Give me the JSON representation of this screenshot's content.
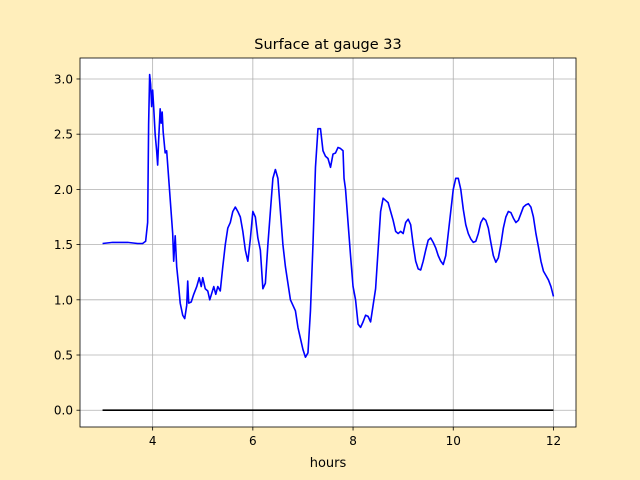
{
  "figure": {
    "background": "#ffeebb"
  },
  "chart_data": {
    "type": "line",
    "title": "Surface at gauge 33",
    "xlabel": "hours",
    "ylabel": "",
    "xlim": [
      2.55,
      12.45
    ],
    "ylim": [
      -0.152,
      3.19
    ],
    "grid": true,
    "xticks": [
      4,
      6,
      8,
      10,
      12
    ],
    "xtick_labels": [
      "4",
      "6",
      "8",
      "10",
      "12"
    ],
    "yticks": [
      0.0,
      0.5,
      1.0,
      1.5,
      2.0,
      2.5,
      3.0
    ],
    "ytick_labels": [
      "0.0",
      "0.5",
      "1.0",
      "1.5",
      "2.0",
      "2.5",
      "3.0"
    ],
    "series": [
      {
        "color": "#0000ff",
        "points": [
          [
            3.0,
            1.51
          ],
          [
            3.2,
            1.52
          ],
          [
            3.5,
            1.52
          ],
          [
            3.7,
            1.51
          ],
          [
            3.8,
            1.51
          ],
          [
            3.86,
            1.53
          ],
          [
            3.9,
            1.7
          ],
          [
            3.92,
            2.6
          ],
          [
            3.94,
            3.04
          ],
          [
            3.96,
            2.95
          ],
          [
            3.98,
            2.75
          ],
          [
            4.0,
            2.9
          ],
          [
            4.02,
            2.75
          ],
          [
            4.05,
            2.5
          ],
          [
            4.08,
            2.35
          ],
          [
            4.1,
            2.22
          ],
          [
            4.12,
            2.45
          ],
          [
            4.15,
            2.73
          ],
          [
            4.17,
            2.6
          ],
          [
            4.19,
            2.7
          ],
          [
            4.21,
            2.52
          ],
          [
            4.25,
            2.33
          ],
          [
            4.28,
            2.35
          ],
          [
            4.32,
            2.1
          ],
          [
            4.36,
            1.85
          ],
          [
            4.4,
            1.6
          ],
          [
            4.42,
            1.35
          ],
          [
            4.45,
            1.58
          ],
          [
            4.48,
            1.3
          ],
          [
            4.52,
            1.12
          ],
          [
            4.55,
            0.97
          ],
          [
            4.6,
            0.86
          ],
          [
            4.64,
            0.83
          ],
          [
            4.68,
            0.95
          ],
          [
            4.7,
            1.17
          ],
          [
            4.72,
            0.97
          ],
          [
            4.77,
            0.98
          ],
          [
            4.82,
            1.05
          ],
          [
            4.88,
            1.12
          ],
          [
            4.93,
            1.2
          ],
          [
            4.97,
            1.12
          ],
          [
            5.0,
            1.2
          ],
          [
            5.05,
            1.1
          ],
          [
            5.1,
            1.08
          ],
          [
            5.14,
            1.0
          ],
          [
            5.18,
            1.06
          ],
          [
            5.22,
            1.12
          ],
          [
            5.26,
            1.05
          ],
          [
            5.3,
            1.12
          ],
          [
            5.35,
            1.08
          ],
          [
            5.4,
            1.3
          ],
          [
            5.45,
            1.5
          ],
          [
            5.5,
            1.65
          ],
          [
            5.55,
            1.7
          ],
          [
            5.6,
            1.8
          ],
          [
            5.65,
            1.84
          ],
          [
            5.7,
            1.8
          ],
          [
            5.75,
            1.75
          ],
          [
            5.8,
            1.62
          ],
          [
            5.85,
            1.45
          ],
          [
            5.9,
            1.35
          ],
          [
            5.95,
            1.55
          ],
          [
            6.0,
            1.8
          ],
          [
            6.05,
            1.75
          ],
          [
            6.1,
            1.56
          ],
          [
            6.15,
            1.45
          ],
          [
            6.2,
            1.1
          ],
          [
            6.25,
            1.15
          ],
          [
            6.3,
            1.5
          ],
          [
            6.35,
            1.8
          ],
          [
            6.4,
            2.1
          ],
          [
            6.45,
            2.18
          ],
          [
            6.5,
            2.1
          ],
          [
            6.55,
            1.8
          ],
          [
            6.6,
            1.5
          ],
          [
            6.65,
            1.3
          ],
          [
            6.7,
            1.15
          ],
          [
            6.75,
            1.0
          ],
          [
            6.8,
            0.95
          ],
          [
            6.85,
            0.9
          ],
          [
            6.9,
            0.75
          ],
          [
            6.95,
            0.65
          ],
          [
            7.0,
            0.55
          ],
          [
            7.05,
            0.48
          ],
          [
            7.1,
            0.52
          ],
          [
            7.15,
            0.9
          ],
          [
            7.2,
            1.5
          ],
          [
            7.25,
            2.2
          ],
          [
            7.3,
            2.55
          ],
          [
            7.35,
            2.55
          ],
          [
            7.4,
            2.35
          ],
          [
            7.45,
            2.3
          ],
          [
            7.5,
            2.28
          ],
          [
            7.55,
            2.2
          ],
          [
            7.6,
            2.32
          ],
          [
            7.65,
            2.33
          ],
          [
            7.7,
            2.38
          ],
          [
            7.75,
            2.37
          ],
          [
            7.8,
            2.35
          ],
          [
            7.82,
            2.1
          ],
          [
            7.85,
            2.0
          ],
          [
            7.9,
            1.7
          ],
          [
            7.95,
            1.4
          ],
          [
            8.0,
            1.12
          ],
          [
            8.05,
            1.0
          ],
          [
            8.1,
            0.78
          ],
          [
            8.15,
            0.75
          ],
          [
            8.2,
            0.8
          ],
          [
            8.25,
            0.86
          ],
          [
            8.3,
            0.85
          ],
          [
            8.35,
            0.8
          ],
          [
            8.4,
            0.95
          ],
          [
            8.45,
            1.1
          ],
          [
            8.5,
            1.45
          ],
          [
            8.55,
            1.8
          ],
          [
            8.6,
            1.92
          ],
          [
            8.65,
            1.9
          ],
          [
            8.7,
            1.88
          ],
          [
            8.75,
            1.8
          ],
          [
            8.8,
            1.72
          ],
          [
            8.85,
            1.62
          ],
          [
            8.9,
            1.6
          ],
          [
            8.95,
            1.62
          ],
          [
            9.0,
            1.6
          ],
          [
            9.05,
            1.7
          ],
          [
            9.1,
            1.73
          ],
          [
            9.15,
            1.68
          ],
          [
            9.2,
            1.5
          ],
          [
            9.25,
            1.35
          ],
          [
            9.3,
            1.28
          ],
          [
            9.35,
            1.27
          ],
          [
            9.4,
            1.35
          ],
          [
            9.45,
            1.45
          ],
          [
            9.5,
            1.54
          ],
          [
            9.55,
            1.56
          ],
          [
            9.6,
            1.52
          ],
          [
            9.65,
            1.47
          ],
          [
            9.7,
            1.4
          ],
          [
            9.75,
            1.35
          ],
          [
            9.8,
            1.32
          ],
          [
            9.85,
            1.4
          ],
          [
            9.9,
            1.6
          ],
          [
            9.95,
            1.8
          ],
          [
            10.0,
            2.0
          ],
          [
            10.05,
            2.1
          ],
          [
            10.1,
            2.1
          ],
          [
            10.15,
            2.0
          ],
          [
            10.2,
            1.82
          ],
          [
            10.25,
            1.68
          ],
          [
            10.3,
            1.6
          ],
          [
            10.35,
            1.55
          ],
          [
            10.4,
            1.52
          ],
          [
            10.45,
            1.53
          ],
          [
            10.5,
            1.6
          ],
          [
            10.55,
            1.7
          ],
          [
            10.6,
            1.74
          ],
          [
            10.65,
            1.72
          ],
          [
            10.7,
            1.65
          ],
          [
            10.75,
            1.52
          ],
          [
            10.8,
            1.4
          ],
          [
            10.85,
            1.34
          ],
          [
            10.9,
            1.38
          ],
          [
            10.95,
            1.5
          ],
          [
            11.0,
            1.65
          ],
          [
            11.05,
            1.75
          ],
          [
            11.1,
            1.8
          ],
          [
            11.15,
            1.79
          ],
          [
            11.2,
            1.74
          ],
          [
            11.25,
            1.7
          ],
          [
            11.3,
            1.72
          ],
          [
            11.35,
            1.78
          ],
          [
            11.4,
            1.84
          ],
          [
            11.45,
            1.86
          ],
          [
            11.5,
            1.87
          ],
          [
            11.55,
            1.84
          ],
          [
            11.6,
            1.75
          ],
          [
            11.65,
            1.6
          ],
          [
            11.7,
            1.48
          ],
          [
            11.75,
            1.35
          ],
          [
            11.8,
            1.26
          ],
          [
            11.85,
            1.22
          ],
          [
            11.9,
            1.18
          ],
          [
            11.95,
            1.12
          ],
          [
            12.0,
            1.03
          ]
        ]
      },
      {
        "color": "#000000",
        "points": [
          [
            3.0,
            0.0
          ],
          [
            12.0,
            0.0
          ]
        ]
      }
    ]
  }
}
